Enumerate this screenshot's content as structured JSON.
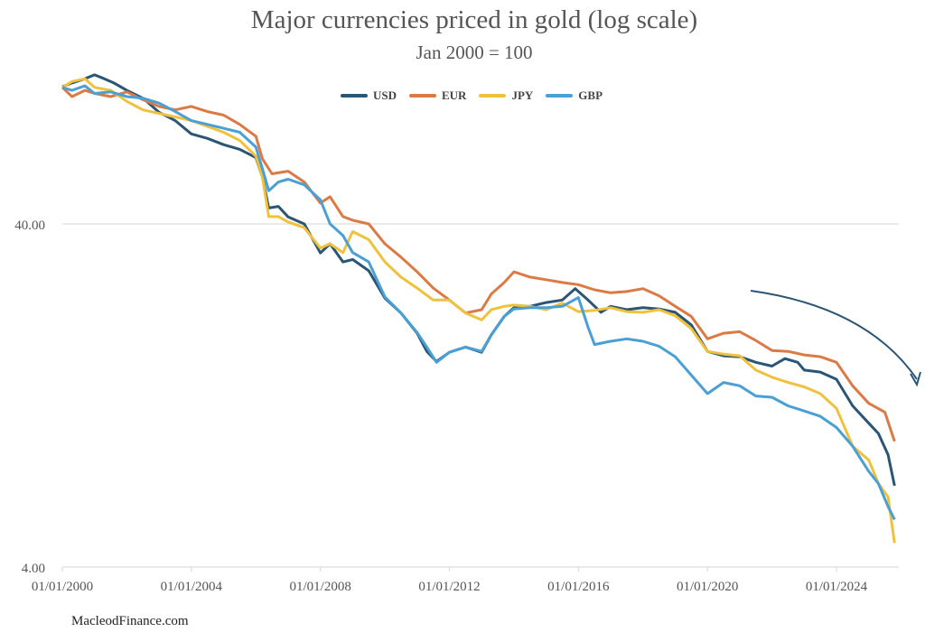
{
  "chart_data": {
    "type": "line",
    "title": "Major currencies priced in gold (log scale)",
    "subtitle": "Jan 2000 = 100",
    "xlabel": "",
    "ylabel": "",
    "yscale": "log",
    "ylim": [
      4,
      110
    ],
    "xlim": [
      2000,
      2026
    ],
    "grid": true,
    "legend_position": "top",
    "y_ticks": [
      {
        "value": 40,
        "label": "40.00"
      },
      {
        "value": 4,
        "label": "4.00"
      }
    ],
    "x_ticks": [
      {
        "value": 2000,
        "label": "01/01/2000"
      },
      {
        "value": 2004,
        "label": "01/01/2004"
      },
      {
        "value": 2008,
        "label": "01/01/2008"
      },
      {
        "value": 2012,
        "label": "01/01/2012"
      },
      {
        "value": 2016,
        "label": "01/01/2016"
      },
      {
        "value": 2020,
        "label": "01/01/2020"
      },
      {
        "value": 2024,
        "label": "01/01/2024"
      }
    ],
    "series": [
      {
        "name": "USD",
        "color": "#2b5574",
        "x": [
          2000,
          2000.3,
          2000.7,
          2001,
          2001.3,
          2001.6,
          2002,
          2002.5,
          2003,
          2003.5,
          2004,
          2004.5,
          2005,
          2005.5,
          2006,
          2006.2,
          2006.4,
          2006.7,
          2007,
          2007.5,
          2008,
          2008.3,
          2008.7,
          2009,
          2009.5,
          2010,
          2010.5,
          2011,
          2011.3,
          2011.6,
          2012,
          2012.5,
          2013,
          2013.3,
          2013.7,
          2014,
          2014.5,
          2015,
          2015.5,
          2015.9,
          2016.3,
          2016.7,
          2017,
          2017.5,
          2018,
          2018.5,
          2019,
          2019.5,
          2020,
          2020.5,
          2021,
          2021.5,
          2022,
          2022.4,
          2022.8,
          2023,
          2023.5,
          2024,
          2024.5,
          2025,
          2025.3,
          2025.6,
          2025.8
        ],
        "values": [
          100.5,
          103,
          106,
          108.8,
          106,
          103,
          98,
          93,
          84.6,
          80,
          73.2,
          71,
          68.1,
          66,
          62.4,
          55,
          44.5,
          45,
          41.9,
          40,
          32.9,
          35,
          31,
          31.5,
          29.2,
          24.3,
          22,
          19.2,
          17,
          15.9,
          16.9,
          17.5,
          16.9,
          19,
          21.5,
          22.8,
          23,
          23.6,
          24,
          25.9,
          24,
          22.1,
          23,
          22.5,
          22.8,
          22.6,
          22.1,
          20.3,
          17,
          16.5,
          16.4,
          15.8,
          15.4,
          16.2,
          15.8,
          15,
          14.8,
          14.1,
          11.8,
          10.5,
          9.8,
          8.5,
          6.9
        ]
      },
      {
        "name": "EUR",
        "color": "#dc7a45",
        "x": [
          2000,
          2000.3,
          2000.7,
          2001,
          2001.5,
          2002,
          2002.5,
          2003,
          2003.5,
          2004,
          2004.5,
          2005,
          2005.5,
          2006,
          2006.2,
          2006.5,
          2007,
          2007.5,
          2008,
          2008.3,
          2008.7,
          2009,
          2009.5,
          2010,
          2010.5,
          2011,
          2011.5,
          2012,
          2012.5,
          2013,
          2013.3,
          2013.7,
          2014,
          2014.5,
          2015,
          2015.5,
          2016,
          2016.5,
          2017,
          2017.5,
          2018,
          2018.5,
          2019,
          2019.5,
          2020,
          2020.5,
          2021,
          2021.5,
          2022,
          2022.5,
          2023,
          2023.5,
          2024,
          2024.5,
          2025,
          2025.5,
          2025.8
        ],
        "values": [
          100,
          94,
          98,
          96,
          94,
          97,
          92,
          88,
          86,
          88,
          85,
          83,
          78,
          72,
          62,
          56,
          57,
          53,
          46,
          48,
          42,
          41,
          40,
          35,
          32,
          29,
          26,
          24,
          22,
          22.5,
          25,
          27,
          29,
          28,
          27.5,
          27,
          26.6,
          25.7,
          25.2,
          25.4,
          25.9,
          24.7,
          23,
          21.5,
          18.5,
          19.2,
          19.4,
          18.3,
          17.1,
          17,
          16.6,
          16.4,
          15.8,
          13.5,
          12,
          11.3,
          9.3
        ]
      },
      {
        "name": "JPY",
        "color": "#f0c13d",
        "x": [
          2000,
          2000.3,
          2000.7,
          2001,
          2001.5,
          2002,
          2002.5,
          2003,
          2003.5,
          2004,
          2004.5,
          2005,
          2005.5,
          2006,
          2006.2,
          2006.4,
          2006.7,
          2007,
          2007.5,
          2008,
          2008.3,
          2008.7,
          2009,
          2009.5,
          2010,
          2010.5,
          2011,
          2011.5,
          2012,
          2012.5,
          2013,
          2013.3,
          2013.7,
          2014,
          2014.5,
          2015,
          2015.5,
          2016,
          2016.5,
          2017,
          2017.5,
          2018,
          2018.5,
          2019,
          2019.5,
          2020,
          2020.5,
          2021,
          2021.5,
          2022,
          2022.5,
          2023,
          2023.5,
          2024,
          2024.5,
          2025,
          2025.3,
          2025.6,
          2025.8
        ],
        "values": [
          100,
          104,
          106,
          100,
          98,
          91,
          86,
          84,
          82,
          80,
          77,
          74,
          70,
          63,
          55,
          42,
          42,
          40.5,
          39,
          34,
          35,
          33,
          38,
          36,
          31,
          28,
          26,
          24,
          24,
          22,
          21,
          22.5,
          23,
          23.2,
          23,
          22.5,
          23.5,
          22.2,
          22.4,
          22.8,
          22.2,
          22.1,
          22.5,
          21.6,
          19.8,
          17,
          16.7,
          16.5,
          15,
          14.3,
          13.8,
          13.4,
          12.8,
          11.6,
          9,
          8.2,
          7,
          6.4,
          4.7
        ]
      },
      {
        "name": "GBP",
        "color": "#4a9fd4",
        "x": [
          2000,
          2000.3,
          2000.7,
          2001,
          2001.5,
          2002,
          2002.5,
          2003,
          2003.5,
          2004,
          2004.5,
          2005,
          2005.5,
          2006,
          2006.2,
          2006.4,
          2006.7,
          2007,
          2007.5,
          2008,
          2008.3,
          2008.7,
          2009,
          2009.5,
          2010,
          2010.5,
          2011,
          2011.3,
          2011.6,
          2012,
          2012.5,
          2013,
          2013.3,
          2013.7,
          2014,
          2014.5,
          2015,
          2015.5,
          2016,
          2016.3,
          2016.5,
          2017,
          2017.5,
          2018,
          2018.5,
          2019,
          2019.5,
          2020,
          2020.5,
          2021,
          2021.5,
          2022,
          2022.5,
          2023,
          2023.5,
          2024,
          2024.5,
          2025,
          2025.3,
          2025.6,
          2025.8
        ],
        "values": [
          100,
          98,
          101,
          96,
          97,
          94,
          93,
          90,
          85,
          80,
          78,
          76,
          74,
          67,
          58,
          50,
          53,
          54,
          52,
          47,
          40,
          37,
          33,
          31,
          24.5,
          22,
          19.3,
          17.5,
          15.8,
          16.9,
          17.5,
          17,
          19,
          21.5,
          22.6,
          22.8,
          22.8,
          23,
          24.4,
          20,
          17.8,
          18.2,
          18.5,
          18.2,
          17.6,
          16.4,
          14.5,
          12.8,
          13.8,
          13.5,
          12.6,
          12.5,
          11.8,
          11.4,
          11,
          10.2,
          9,
          7.6,
          7,
          6,
          5.5
        ]
      }
    ],
    "annotations": [
      {
        "type": "arrow",
        "description": "curved downward arrow"
      }
    ]
  },
  "footer": {
    "source": "MacleodFinance.com"
  },
  "colors": {
    "grid": "#dddddd",
    "axis_text": "#555555",
    "arrow": "#2b5574"
  }
}
